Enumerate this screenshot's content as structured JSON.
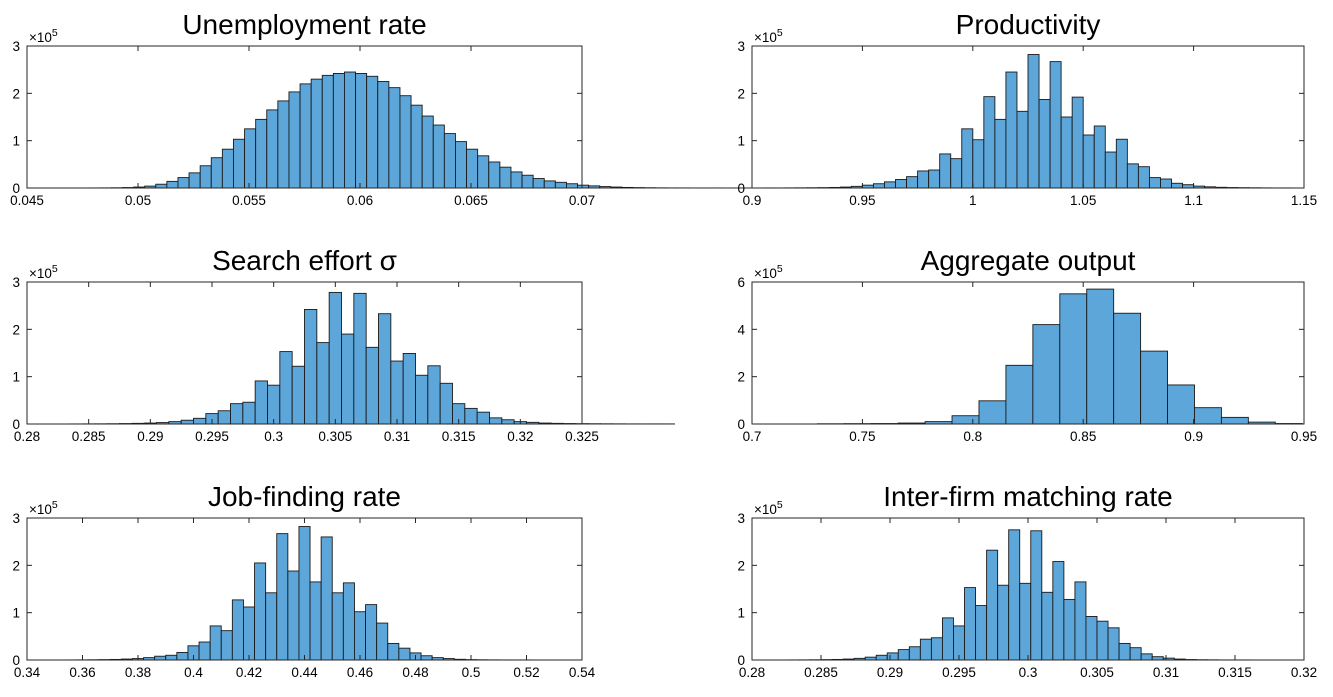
{
  "colors": {
    "bar_fill": "#5da6da",
    "bar_edge": "#1a1a1a",
    "axis": "#262626"
  },
  "chart_data": [
    {
      "type": "bar",
      "title": "Unemployment rate",
      "exponent": "5",
      "xlim": [
        0.045,
        0.07
      ],
      "ylim": [
        0,
        3
      ],
      "xticks": [
        "0.045",
        "0.05",
        "0.055",
        "0.06",
        "0.065",
        "0.07"
      ],
      "yticks": [
        "0",
        "1",
        "2",
        "3"
      ],
      "bins": {
        "start": 0.0478,
        "width": 0.0005
      },
      "values": [
        0.002,
        0.003,
        0.005,
        0.01,
        0.02,
        0.04,
        0.08,
        0.14,
        0.22,
        0.32,
        0.47,
        0.64,
        0.82,
        1.03,
        1.25,
        1.45,
        1.65,
        1.84,
        2.03,
        2.2,
        2.3,
        2.38,
        2.42,
        2.45,
        2.42,
        2.36,
        2.25,
        2.12,
        1.95,
        1.75,
        1.52,
        1.33,
        1.15,
        0.98,
        0.82,
        0.68,
        0.55,
        0.44,
        0.34,
        0.27,
        0.2,
        0.15,
        0.12,
        0.09,
        0.06,
        0.045,
        0.03,
        0.02,
        0.012,
        0.008,
        0.005,
        0.003,
        0.002,
        0.0015,
        0.001,
        0.001,
        0.001,
        0.0008,
        0.0006,
        0.0005
      ]
    },
    {
      "type": "bar",
      "title": "Productivity",
      "exponent": "5",
      "xlim": [
        0.9,
        1.15
      ],
      "ylim": [
        0,
        3
      ],
      "xticks": [
        "0.9",
        "0.95",
        "1",
        "1.05",
        "1.1",
        "1.15"
      ],
      "yticks": [
        "0",
        "1",
        "2",
        "3"
      ],
      "bins": {
        "start": 0.905,
        "width": 0.005
      },
      "values": [
        0.002,
        0.002,
        0.003,
        0.004,
        0.006,
        0.008,
        0.012,
        0.02,
        0.035,
        0.06,
        0.09,
        0.13,
        0.18,
        0.24,
        0.36,
        0.38,
        0.72,
        0.62,
        1.25,
        1.02,
        1.93,
        1.45,
        2.45,
        1.62,
        2.82,
        1.87,
        2.67,
        1.5,
        1.92,
        1.12,
        1.31,
        0.76,
        1.03,
        0.51,
        0.45,
        0.22,
        0.19,
        0.1,
        0.07,
        0.04,
        0.025,
        0.015,
        0.01,
        0.007,
        0.005,
        0.003,
        0.002,
        0.002
      ]
    },
    {
      "type": "bar",
      "title": "Search effort σ",
      "exponent": "5",
      "xlim": [
        0.28,
        0.325
      ],
      "ylim": [
        0,
        3
      ],
      "xticks": [
        "0.28",
        "0.285",
        "0.29",
        "0.295",
        "0.3",
        "0.305",
        "0.31",
        "0.315",
        "0.32",
        "0.325"
      ],
      "yticks": [
        "0",
        "1",
        "2",
        "3"
      ],
      "bins": {
        "start": 0.2835,
        "width": 0.001
      },
      "values": [
        0.002,
        0.003,
        0.004,
        0.006,
        0.009,
        0.014,
        0.02,
        0.03,
        0.05,
        0.08,
        0.12,
        0.22,
        0.28,
        0.43,
        0.46,
        0.91,
        0.82,
        1.53,
        1.22,
        2.42,
        1.72,
        2.78,
        1.9,
        2.76,
        1.62,
        2.33,
        1.33,
        1.49,
        1.03,
        1.23,
        0.86,
        0.43,
        0.33,
        0.25,
        0.13,
        0.09,
        0.05,
        0.035,
        0.02,
        0.014,
        0.01,
        0.007,
        0.005,
        0.004,
        0.003,
        0.002,
        0.002,
        0.002,
        0.002
      ]
    },
    {
      "type": "bar",
      "title": "Aggregate output",
      "exponent": "5",
      "xlim": [
        0.7,
        0.95
      ],
      "ylim": [
        0,
        6
      ],
      "xticks": [
        "0.7",
        "0.75",
        "0.8",
        "0.85",
        "0.9",
        "0.95"
      ],
      "yticks": [
        "0",
        "2",
        "4",
        "6"
      ],
      "bins": {
        "start": 0.7296,
        "width": 0.0122
      },
      "values": [
        0.01,
        0.015,
        0.02,
        0.04,
        0.1,
        0.35,
        0.98,
        2.48,
        4.2,
        5.5,
        5.7,
        4.68,
        3.08,
        1.65,
        0.69,
        0.28,
        0.08,
        0.02
      ]
    },
    {
      "type": "bar",
      "title": "Job-finding rate",
      "exponent": "5",
      "xlim": [
        0.34,
        0.54
      ],
      "ylim": [
        0,
        3
      ],
      "xticks": [
        "0.34",
        "0.36",
        "0.38",
        "0.4",
        "0.42",
        "0.44",
        "0.46",
        "0.48",
        "0.5",
        "0.52",
        "0.54"
      ],
      "yticks": [
        "0",
        "1",
        "2",
        "3"
      ],
      "bins": {
        "start": 0.354,
        "width": 0.004
      },
      "values": [
        0.002,
        0.003,
        0.005,
        0.008,
        0.012,
        0.02,
        0.03,
        0.05,
        0.08,
        0.1,
        0.16,
        0.3,
        0.38,
        0.72,
        0.62,
        1.27,
        1.12,
        2.05,
        1.42,
        2.67,
        1.88,
        2.82,
        1.65,
        2.6,
        1.42,
        1.63,
        1.02,
        1.17,
        0.78,
        0.35,
        0.25,
        0.15,
        0.09,
        0.05,
        0.03,
        0.015,
        0.008,
        0.005,
        0.003,
        0.002,
        0.002,
        0.002
      ]
    },
    {
      "type": "bar",
      "title": "Inter-firm matching rate",
      "exponent": "5",
      "xlim": [
        0.28,
        0.32
      ],
      "ylim": [
        0,
        3
      ],
      "xticks": [
        "0.28",
        "0.285",
        "0.29",
        "0.295",
        "0.3",
        "0.305",
        "0.31",
        "0.315",
        "0.32"
      ],
      "yticks": [
        "0",
        "1",
        "2",
        "3"
      ],
      "bins": {
        "start": 0.2826,
        "width": 0.0008
      },
      "values": [
        0.002,
        0.003,
        0.005,
        0.008,
        0.012,
        0.02,
        0.035,
        0.06,
        0.1,
        0.15,
        0.22,
        0.28,
        0.44,
        0.47,
        0.89,
        0.72,
        1.53,
        1.15,
        2.32,
        1.58,
        2.75,
        1.62,
        2.73,
        1.43,
        2.08,
        1.28,
        1.65,
        0.92,
        0.82,
        0.68,
        0.35,
        0.26,
        0.13,
        0.07,
        0.04,
        0.02,
        0.01,
        0.006,
        0.004,
        0.002,
        0.002,
        0.002
      ]
    }
  ]
}
